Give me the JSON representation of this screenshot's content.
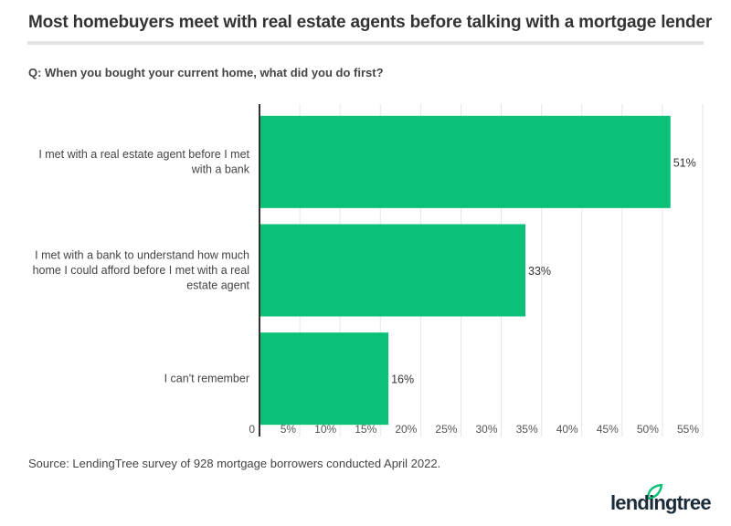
{
  "title": "Most homebuyers meet with real estate agents before talking with a mortgage lender",
  "question": "Q: When you bought your current home, what did you do first?",
  "source": "Source: LendingTree survey of 928 mortgage borrowers conducted April 2022.",
  "logo": "lendingtree",
  "colors": {
    "bar": "#0bc177",
    "grid": "#e6e6e6",
    "axis": "#333333",
    "leaf": "#0bc177"
  },
  "chart_data": {
    "type": "bar",
    "orientation": "horizontal",
    "title": "Most homebuyers meet with real estate agents before talking with a mortgage lender",
    "categories": [
      [
        "I met with a real estate agent before I met",
        "with a bank"
      ],
      [
        "I met with a bank to understand how much",
        "home I could afford before I met with a real",
        "estate agent"
      ],
      [
        "I can't remember"
      ]
    ],
    "values": [
      51,
      33,
      16
    ],
    "data_labels": [
      "51%",
      "33%",
      "16%"
    ],
    "xlim": [
      0,
      55
    ],
    "xticks": [
      0,
      5,
      10,
      15,
      20,
      25,
      30,
      35,
      40,
      45,
      50,
      55
    ],
    "xtick_labels": [
      "0",
      "5%",
      "10%",
      "15%",
      "20%",
      "25%",
      "30%",
      "35%",
      "40%",
      "45%",
      "50%",
      "55%"
    ],
    "grid": true,
    "xlabel": "",
    "ylabel": ""
  }
}
